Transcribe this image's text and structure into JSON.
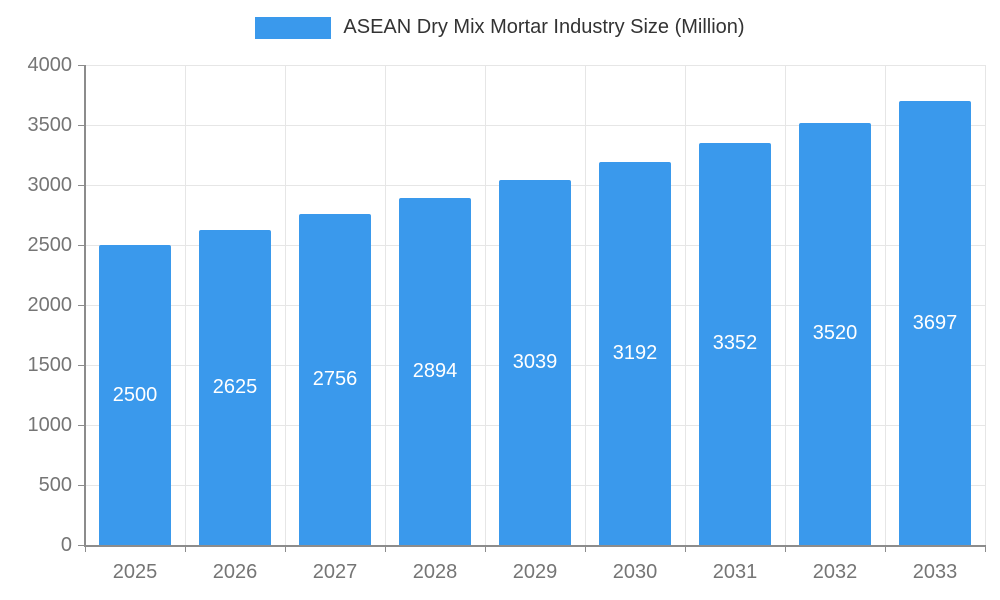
{
  "legend": {
    "label": "ASEAN Dry Mix Mortar Industry Size (Million)"
  },
  "colors": {
    "bar": "#3a99ec",
    "axis_text": "#757575",
    "grid": "#e6e6e6",
    "axis_line": "#8c8c8c",
    "bar_label": "#ffffff"
  },
  "chart_data": {
    "type": "bar",
    "title": "ASEAN Dry Mix Mortar Industry Size (Million)",
    "categories": [
      "2025",
      "2026",
      "2027",
      "2028",
      "2029",
      "2030",
      "2031",
      "2032",
      "2033"
    ],
    "values": [
      2500,
      2625,
      2756,
      2894,
      3039,
      3192,
      3352,
      3520,
      3697
    ],
    "xlabel": "",
    "ylabel": "",
    "ylim": [
      0,
      4000
    ],
    "ytick_step": 500,
    "ytick_labels": [
      "0",
      "500",
      "1000",
      "1500",
      "2000",
      "2500",
      "3000",
      "3500",
      "4000"
    ],
    "grid": true,
    "legend_position": "top",
    "bar_label_position": "inside-middle"
  }
}
